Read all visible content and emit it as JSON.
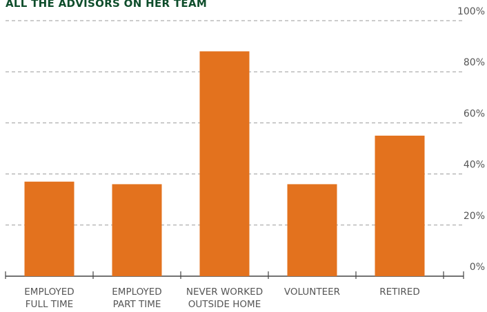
{
  "chart_data": {
    "type": "bar",
    "title": "ALL THE ADVISORS ON HER TEAM",
    "categories": [
      "EMPLOYED\nFULL TIME",
      "EMPLOYED\nPART TIME",
      "NEVER WORKED\nOUTSIDE HOME",
      "VOLUNTEER",
      "RETIRED"
    ],
    "values": [
      37,
      36,
      88,
      36,
      55
    ],
    "color": "#e3721e",
    "ylim": [
      0,
      100
    ],
    "yticks": [
      {
        "value": 0,
        "label": "0%"
      },
      {
        "value": 20,
        "label": "20%"
      },
      {
        "value": 40,
        "label": "40%"
      },
      {
        "value": 60,
        "label": "60%"
      },
      {
        "value": 80,
        "label": "80%"
      },
      {
        "value": 100,
        "label": "100%"
      }
    ],
    "grid": true
  }
}
